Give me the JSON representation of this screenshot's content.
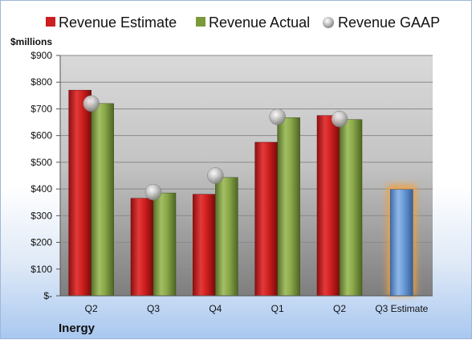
{
  "chart_data": {
    "type": "bar",
    "unit_label": "$millions",
    "company": "Inergy",
    "categories": [
      "Q2",
      "Q3",
      "Q4",
      "Q1",
      "Q2",
      "Q3 Estimate"
    ],
    "y_ticks": [
      "$-",
      "$100",
      "$200",
      "$300",
      "$400",
      "$500",
      "$600",
      "$700",
      "$800",
      "$900"
    ],
    "ylim": [
      0,
      900
    ],
    "legend_position": "top",
    "grid": true,
    "series": [
      {
        "name": "Revenue Estimate",
        "color": "#cc1f1f",
        "values": [
          770,
          365,
          380,
          575,
          675,
          398
        ]
      },
      {
        "name": "Revenue Actual",
        "color": "#7a9a3c",
        "values": [
          720,
          385,
          443,
          667,
          660,
          null
        ]
      },
      {
        "name": "Revenue GAAP",
        "color": "#b0b0b0",
        "values": [
          720,
          388,
          450,
          670,
          662,
          null
        ]
      }
    ],
    "estimate_bar_color": "#6a9bd8"
  }
}
